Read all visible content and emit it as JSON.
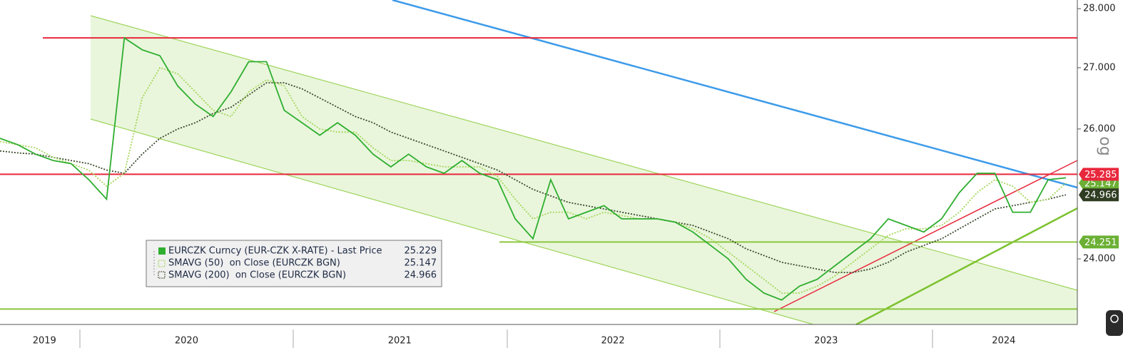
{
  "chart_data": {
    "type": "line",
    "log_scale": true,
    "scale_label": "og",
    "categories": [
      null,
      null,
      null,
      "2019",
      null,
      null,
      null,
      null,
      null,
      null,
      null,
      "2020",
      null,
      null,
      null,
      null,
      null,
      null,
      null,
      null,
      null,
      null,
      null,
      "2021",
      null,
      null,
      null,
      null,
      null,
      null,
      null,
      null,
      null,
      null,
      null,
      "2022",
      null,
      null,
      null,
      null,
      null,
      null,
      null,
      null,
      null,
      null,
      null,
      "2023",
      null,
      null,
      null,
      null,
      null,
      null,
      null,
      null,
      null,
      "2024",
      null,
      null,
      null
    ],
    "series": [
      {
        "name": "EURCZK Curncy (EUR-CZK X-RATE) - Last Price",
        "color": "#2fae2f",
        "values": [
          25.85,
          25.75,
          25.6,
          25.5,
          25.45,
          25.2,
          24.9,
          27.5,
          27.3,
          27.2,
          26.7,
          26.4,
          26.2,
          26.6,
          27.1,
          27.1,
          26.3,
          26.1,
          25.9,
          26.1,
          25.9,
          25.6,
          25.4,
          25.6,
          25.4,
          25.3,
          25.5,
          25.3,
          25.2,
          24.6,
          24.3,
          25.2,
          24.6,
          24.7,
          24.8,
          24.6,
          24.6,
          24.6,
          24.55,
          24.4,
          24.2,
          24.0,
          23.7,
          23.5,
          23.4,
          23.6,
          23.7,
          23.9,
          24.1,
          24.3,
          24.6,
          24.5,
          24.4,
          24.6,
          25.0,
          25.3,
          25.3,
          24.7,
          24.7,
          25.2,
          25.229
        ]
      },
      {
        "name": "SMAVG (50)  on Close (EURCZK BGN)",
        "color": "#a6d65a",
        "values": [
          25.8,
          25.75,
          25.7,
          25.55,
          25.45,
          25.35,
          25.1,
          25.3,
          26.5,
          27.0,
          26.9,
          26.6,
          26.3,
          26.2,
          26.6,
          26.8,
          26.7,
          26.2,
          26.0,
          25.95,
          25.95,
          25.7,
          25.5,
          25.5,
          25.45,
          25.4,
          25.4,
          25.4,
          25.25,
          24.9,
          24.6,
          24.7,
          24.7,
          24.6,
          24.7,
          24.65,
          24.6,
          24.6,
          24.55,
          24.45,
          24.3,
          24.1,
          23.9,
          23.7,
          23.5,
          23.5,
          23.6,
          23.75,
          23.95,
          24.15,
          24.35,
          24.45,
          24.45,
          24.5,
          24.7,
          25.0,
          25.2,
          25.1,
          24.85,
          24.9,
          25.147
        ]
      },
      {
        "name": "SMAVG (200)  on Close (EURCZK BGN)",
        "color": "#3b4a2c",
        "values": [
          25.65,
          25.62,
          25.6,
          25.55,
          25.5,
          25.45,
          25.35,
          25.3,
          25.6,
          25.85,
          26.0,
          26.1,
          26.25,
          26.35,
          26.55,
          26.75,
          26.75,
          26.65,
          26.5,
          26.35,
          26.2,
          26.1,
          25.95,
          25.85,
          25.75,
          25.65,
          25.55,
          25.45,
          25.35,
          25.2,
          25.05,
          24.95,
          24.85,
          24.8,
          24.75,
          24.7,
          24.65,
          24.6,
          24.55,
          24.5,
          24.4,
          24.3,
          24.15,
          24.05,
          23.95,
          23.9,
          23.85,
          23.8,
          23.8,
          23.85,
          23.95,
          24.1,
          24.2,
          24.3,
          24.45,
          24.6,
          24.75,
          24.8,
          24.85,
          24.9,
          24.966
        ]
      }
    ],
    "ylim": [
      23.05,
      28.15
    ],
    "yticks": [
      {
        "value": 24,
        "label": "24.000"
      },
      {
        "value": 26,
        "label": "26.000"
      },
      {
        "value": 27,
        "label": "27.000"
      },
      {
        "value": 28,
        "label": "28.000"
      }
    ],
    "hlines": [
      {
        "value": 27.5,
        "color": "#e8283c"
      },
      {
        "value": 25.285,
        "color": "#e8283c"
      },
      {
        "value": 24.251,
        "color": "#8cc63f"
      },
      {
        "value": 23.27,
        "color": "#8cc63f"
      }
    ]
  }
}
